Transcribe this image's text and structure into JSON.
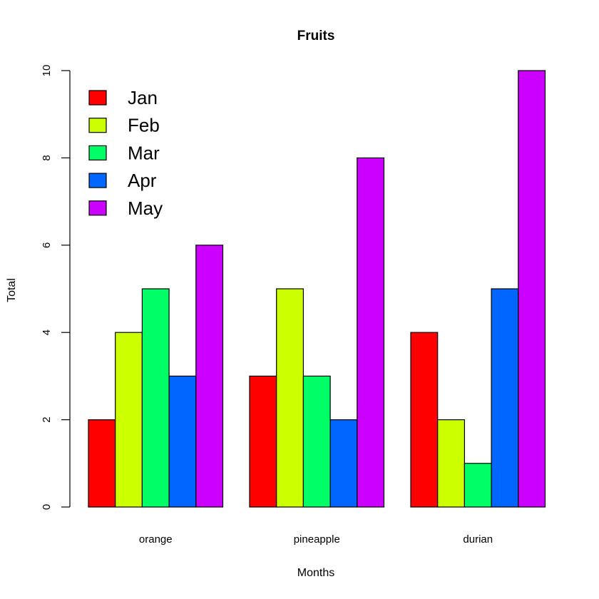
{
  "chart_data": {
    "type": "bar",
    "title": "Fruits",
    "xlabel": "Months",
    "ylabel": "Total",
    "categories": [
      "orange",
      "pineapple",
      "durian"
    ],
    "series": [
      {
        "name": "Jan",
        "color": "#FF0000",
        "values": [
          2,
          3,
          4
        ]
      },
      {
        "name": "Feb",
        "color": "#CCFF00",
        "values": [
          4,
          5,
          2
        ]
      },
      {
        "name": "Mar",
        "color": "#00FF66",
        "values": [
          5,
          3,
          1
        ]
      },
      {
        "name": "Apr",
        "color": "#0066FF",
        "values": [
          3,
          2,
          5
        ]
      },
      {
        "name": "May",
        "color": "#CC00FF",
        "values": [
          6,
          8,
          10
        ]
      }
    ],
    "ylim": [
      0,
      10
    ],
    "yticks": [
      "0",
      "2",
      "4",
      "6",
      "8",
      "10"
    ],
    "grid": false,
    "legend_position": "top-left"
  }
}
